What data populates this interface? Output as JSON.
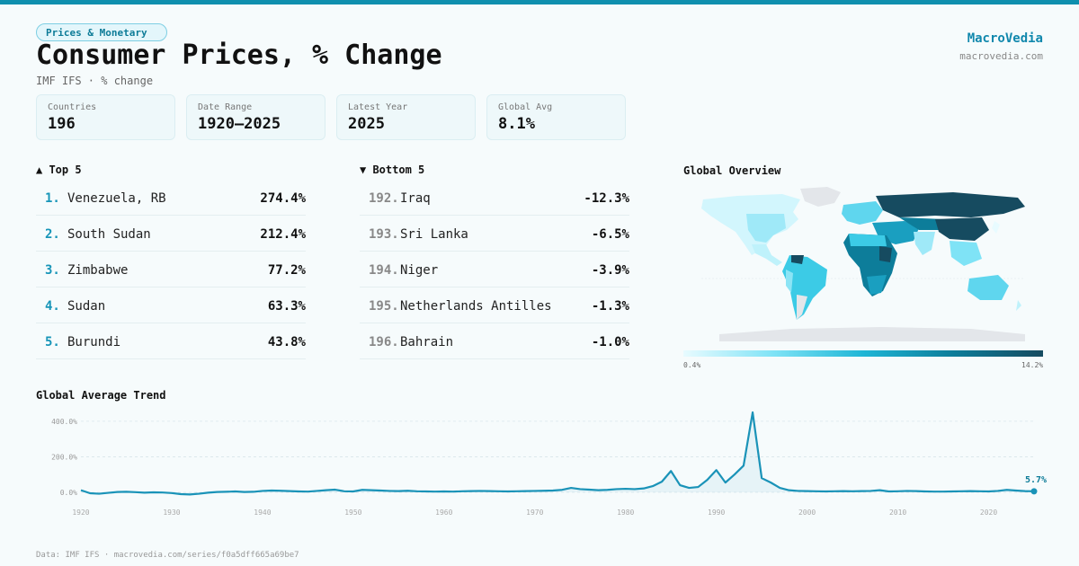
{
  "tag": "Prices & Monetary",
  "title": "Consumer Prices, % Change",
  "subtitle": "IMF IFS · % change",
  "brand": {
    "name": "MacroVedia",
    "url": "macrovedia.com"
  },
  "stats": [
    {
      "label": "Countries",
      "value": "196"
    },
    {
      "label": "Date Range",
      "value": "1920–2025"
    },
    {
      "label": "Latest Year",
      "value": "2025"
    },
    {
      "label": "Global Avg",
      "value": "8.1%"
    }
  ],
  "top5": {
    "heading": "▲ Top 5",
    "items": [
      {
        "rank": "1.",
        "name": "Venezuela, RB",
        "value": "274.4%"
      },
      {
        "rank": "2.",
        "name": "South Sudan",
        "value": "212.4%"
      },
      {
        "rank": "3.",
        "name": "Zimbabwe",
        "value": "77.2%"
      },
      {
        "rank": "4.",
        "name": "Sudan",
        "value": "63.3%"
      },
      {
        "rank": "5.",
        "name": "Burundi",
        "value": "43.8%"
      }
    ]
  },
  "bottom5": {
    "heading": "▼ Bottom 5",
    "items": [
      {
        "rank": "192.",
        "name": "Iraq",
        "value": "-12.3%"
      },
      {
        "rank": "193.",
        "name": "Sri Lanka",
        "value": "-6.5%"
      },
      {
        "rank": "194.",
        "name": "Niger",
        "value": "-3.9%"
      },
      {
        "rank": "195.",
        "name": "Netherlands Antilles",
        "value": "-1.3%"
      },
      {
        "rank": "196.",
        "name": "Bahrain",
        "value": "-1.0%"
      }
    ]
  },
  "map": {
    "heading": "Global Overview",
    "legend_min": "0.4%",
    "legend_max": "14.2%",
    "colors": {
      "low": "#e8fbff",
      "mid": "#1fb6d6",
      "high": "#164b60",
      "nodata": "#e3e6ea"
    }
  },
  "trend_heading": "Global Average Trend",
  "footer": "Data: IMF IFS · macrovedia.com/series/f0a5dff665a69be7",
  "colors": {
    "accent": "#1188ad",
    "line": "#1a93b8"
  },
  "chart_data": {
    "type": "line",
    "title": "Global Average Trend",
    "xlabel": "",
    "ylabel": "",
    "xlim": [
      1920,
      2025
    ],
    "ylim": [
      0,
      450
    ],
    "y_ticks": [
      0,
      200,
      400
    ],
    "y_tick_labels": [
      "0.0%",
      "200.0%",
      "400.0%"
    ],
    "x_ticks": [
      1920,
      1930,
      1940,
      1950,
      1960,
      1970,
      1980,
      1990,
      2000,
      2010,
      2020
    ],
    "grid": true,
    "end_label": "5.7%",
    "series": [
      {
        "x": [
          1920,
          1921,
          1922,
          1923,
          1924,
          1925,
          1926,
          1927,
          1928,
          1929,
          1930,
          1931,
          1932,
          1933,
          1934,
          1935,
          1936,
          1937,
          1938,
          1939,
          1940,
          1941,
          1942,
          1943,
          1944,
          1945,
          1946,
          1947,
          1948,
          1949,
          1950,
          1951,
          1952,
          1953,
          1954,
          1955,
          1956,
          1957,
          1958,
          1959,
          1960,
          1961,
          1962,
          1963,
          1964,
          1965,
          1966,
          1967,
          1968,
          1969,
          1970,
          1971,
          1972,
          1973,
          1974,
          1975,
          1976,
          1977,
          1978,
          1979,
          1980,
          1981,
          1982,
          1983,
          1984,
          1985,
          1986,
          1987,
          1988,
          1989,
          1990,
          1991,
          1992,
          1993,
          1994,
          1995,
          1996,
          1997,
          1998,
          1999,
          2000,
          2001,
          2002,
          2003,
          2004,
          2005,
          2006,
          2007,
          2008,
          2009,
          2010,
          2011,
          2012,
          2013,
          2014,
          2015,
          2016,
          2017,
          2018,
          2019,
          2020,
          2021,
          2022,
          2023,
          2024,
          2025
        ],
        "y": [
          12,
          -5,
          -8,
          -3,
          2,
          3,
          1,
          -2,
          0,
          -1,
          -4,
          -10,
          -12,
          -8,
          -2,
          2,
          3,
          5,
          2,
          3,
          8,
          10,
          9,
          7,
          5,
          4,
          8,
          12,
          15,
          6,
          5,
          14,
          12,
          10,
          8,
          7,
          9,
          6,
          5,
          4,
          5,
          4,
          6,
          7,
          8,
          7,
          6,
          5,
          6,
          7,
          8,
          9,
          10,
          14,
          25,
          18,
          15,
          12,
          14,
          18,
          20,
          18,
          22,
          35,
          60,
          120,
          40,
          25,
          30,
          70,
          125,
          55,
          100,
          150,
          450,
          80,
          55,
          25,
          12,
          8,
          7,
          6,
          5,
          6,
          7,
          6,
          7,
          8,
          12,
          5,
          6,
          8,
          7,
          5,
          4,
          4,
          5,
          6,
          7,
          6,
          5,
          8,
          14,
          10,
          7,
          5.7
        ]
      }
    ]
  }
}
